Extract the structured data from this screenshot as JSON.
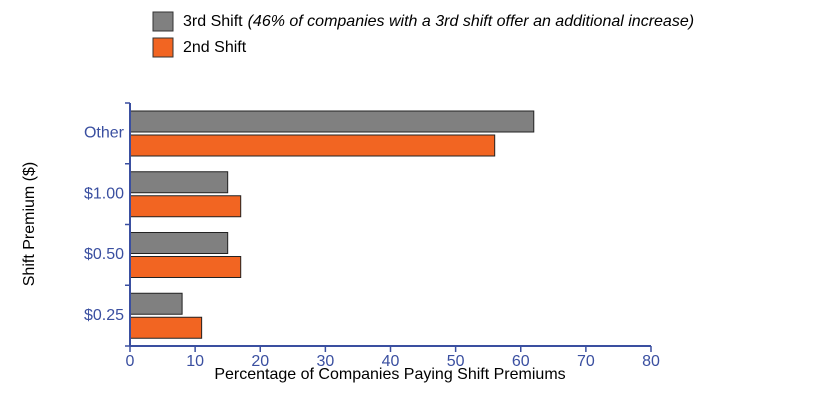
{
  "chart_data": {
    "type": "hbar",
    "categories": [
      "$0.25",
      "$0.50",
      "$1.00",
      "Other"
    ],
    "series": [
      {
        "name": "3rd Shift",
        "note": "(46% of companies with a 3rd shift offer an additional increase)",
        "color": "#808080",
        "values": [
          8,
          15,
          15,
          62
        ]
      },
      {
        "name": "2nd Shift",
        "color": "#f26522",
        "values": [
          11,
          17,
          17,
          56
        ]
      }
    ],
    "xlabel": "Percentage of Companies Paying Shift Premiums",
    "ylabel": "Shift Premium ($)",
    "xlim": [
      0,
      80
    ],
    "xticks": [
      0,
      10,
      20,
      30,
      40,
      50,
      60,
      70,
      80
    ]
  }
}
